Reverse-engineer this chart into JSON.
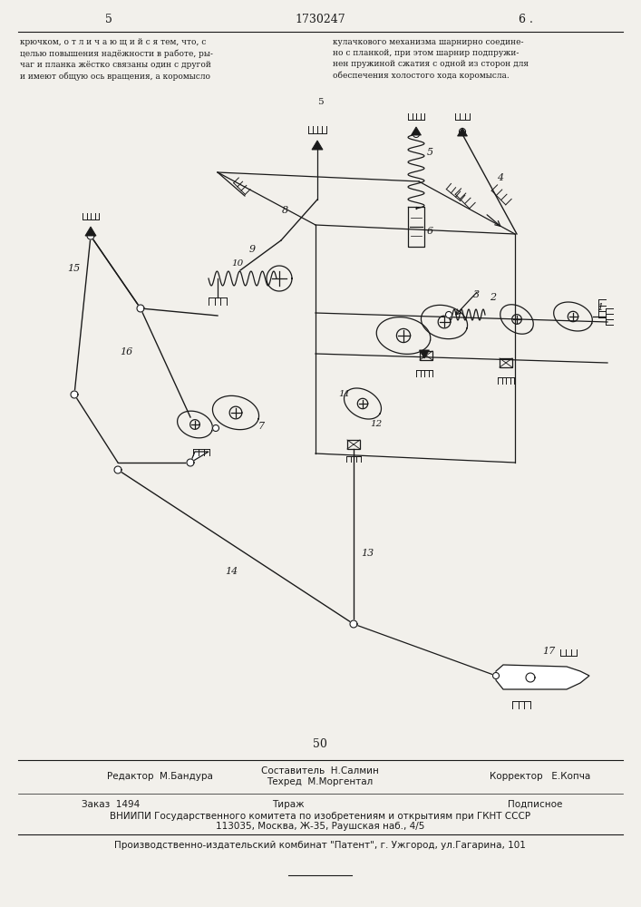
{
  "page_width": 7.07,
  "page_height": 10.0,
  "bg_color": "#f2f0eb",
  "patent_number": "1730247",
  "page_left": "5",
  "page_right": "6 .",
  "page_center_num": "50",
  "text_left": "крючком, о т л и ч а ю щ и й с я тем, что, с\nцелью повышения надёжности в работе, ры-\nчаг и планка жёстко связаны один с другой\nи имеют общую ось вращения, а коромысло",
  "text_right": "кулачкового механизма шарнирно соедине-\nно с планкой, при этом шарнир подпружи-\nнен пружиной сжатия с одной из сторон для\nобеспечения холостого хода коромысла.",
  "footer_text1": "Составитель  Н.Салмин",
  "footer_text2": "Редактор  М.Бандура",
  "footer_text3": "Техред  М.Моргентал",
  "footer_text4": "Корректор   Е.Копча",
  "footer_text5": "Заказ  1494",
  "footer_text6": "Тираж",
  "footer_text7": "Подписное",
  "footer_text8": "ВНИИПИ Государственного комитета по изобретениям и открытиям при ГКНТ СССР",
  "footer_text9": "113035, Москва, Ж-35, Раушская наб., 4/5",
  "footer_text10": "Производственно-издательский комбинат \"Патент\", г. Ужгород, ул.Гагарина, 101",
  "line_color": "#1a1a1a"
}
